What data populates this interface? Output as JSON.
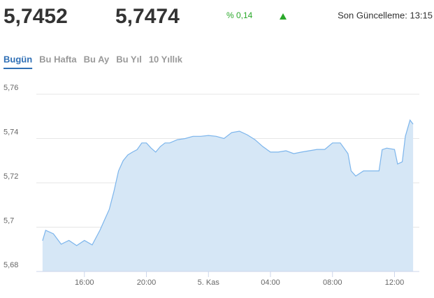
{
  "header": {
    "bid": "5,7452",
    "ask": "5,7474",
    "change": "% 0,14",
    "updated": "Son Güncelleme: 13:15"
  },
  "tabs": [
    "Bugün",
    "Bu Hafta",
    "Bu Ay",
    "Bu Yıl",
    "10 Yıllık"
  ],
  "active_tab": 0,
  "chart_data": {
    "type": "area",
    "color": "#7cb5ec",
    "grid": true,
    "x": [
      13.3,
      13.5,
      14.0,
      14.5,
      15.0,
      15.5,
      16.0,
      16.5,
      17.0,
      17.3,
      17.6,
      17.9,
      18.2,
      18.5,
      18.8,
      19.1,
      19.4,
      19.7,
      20.0,
      20.3,
      20.6,
      20.9,
      21.2,
      21.5,
      22.0,
      22.5,
      23.0,
      23.5,
      24.0,
      24.5,
      25.0,
      25.5,
      26.0,
      26.5,
      27.0,
      27.5,
      28.0,
      28.5,
      29.0,
      29.5,
      30.0,
      30.5,
      31.0,
      31.5,
      32.0,
      32.5,
      33.0,
      33.2,
      33.5,
      34.0,
      34.5,
      35.0,
      35.2,
      35.5,
      36.0,
      36.2,
      36.5,
      36.7,
      37.0,
      37.2
    ],
    "values": [
      5.6939,
      5.6986,
      5.697,
      5.6923,
      5.694,
      5.6917,
      5.694,
      5.692,
      5.6986,
      5.7033,
      5.708,
      5.716,
      5.7254,
      5.73,
      5.7326,
      5.7339,
      5.735,
      5.738,
      5.738,
      5.7357,
      5.7339,
      5.7364,
      5.738,
      5.738,
      5.7395,
      5.74,
      5.741,
      5.741,
      5.7414,
      5.741,
      5.74,
      5.7427,
      5.7433,
      5.7417,
      5.7395,
      5.7364,
      5.7339,
      5.7339,
      5.7345,
      5.7332,
      5.7339,
      5.7345,
      5.7351,
      5.7351,
      5.738,
      5.738,
      5.7332,
      5.7254,
      5.7231,
      5.7254,
      5.7254,
      5.7254,
      5.735,
      5.7357,
      5.7351,
      5.7285,
      5.7295,
      5.741,
      5.7483,
      5.7465
    ],
    "xlim": [
      12.9,
      37.6
    ],
    "ylim": [
      5.68,
      5.76
    ],
    "xticks": [
      {
        "value": 16,
        "label": "16:00"
      },
      {
        "value": 20,
        "label": "20:00"
      },
      {
        "value": 24,
        "label": "5. Kas"
      },
      {
        "value": 28,
        "label": "04:00"
      },
      {
        "value": 32,
        "label": "08:00"
      },
      {
        "value": 36,
        "label": "12:00"
      }
    ],
    "yticks": [
      {
        "value": 5.68,
        "label": "5,68"
      },
      {
        "value": 5.7,
        "label": "5,7"
      },
      {
        "value": 5.72,
        "label": "5,72"
      },
      {
        "value": 5.74,
        "label": "5,74"
      },
      {
        "value": 5.76,
        "label": "5,76"
      }
    ]
  }
}
